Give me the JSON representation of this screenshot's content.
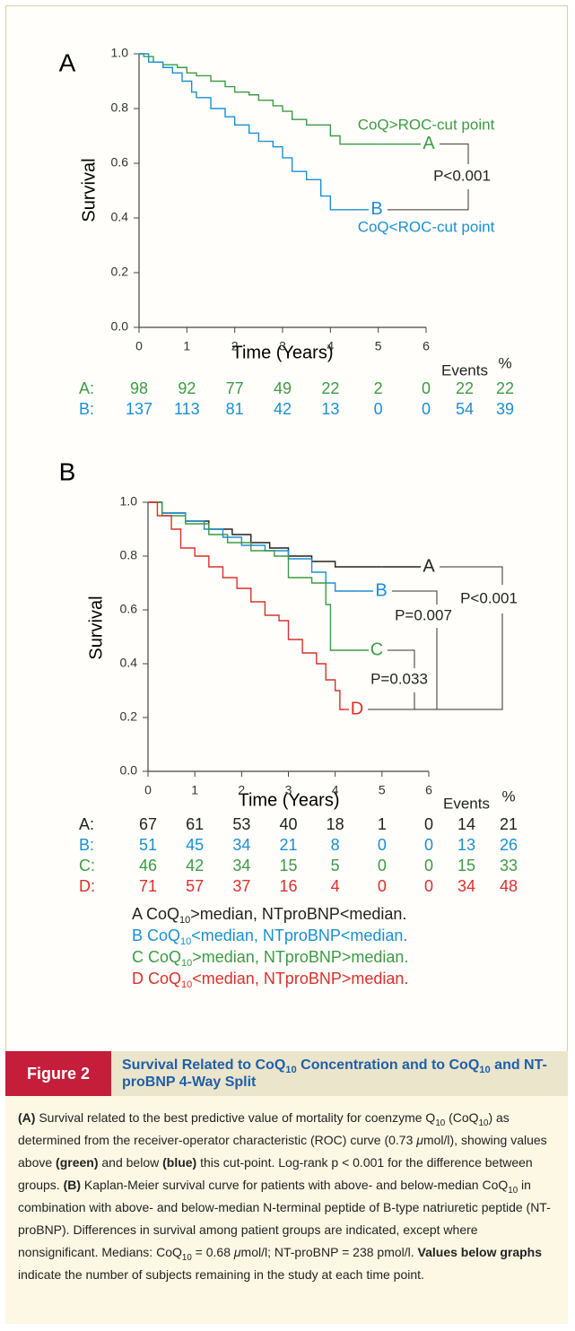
{
  "chart_data": [
    {
      "type": "step",
      "panel": "A",
      "ylabel": "Survival",
      "xlabel": "Time (Years)",
      "xlim": [
        0,
        6
      ],
      "xticks": [
        0,
        1,
        2,
        3,
        4,
        5,
        6
      ],
      "ylim": [
        0,
        1
      ],
      "yticks": [
        {
          "value": 0,
          "label": "0.0"
        },
        {
          "value": 0.2,
          "label": "0.2"
        },
        {
          "value": 0.4,
          "label": "0.4"
        },
        {
          "value": 0.6,
          "label": "0.6"
        },
        {
          "value": 0.8,
          "label": "0.8"
        },
        {
          "value": 1,
          "label": "1.0"
        }
      ],
      "series": [
        {
          "name": "A",
          "color": "#3d9a45",
          "x": [
            0,
            0.1,
            0.3,
            0.5,
            0.8,
            1.0,
            1.2,
            1.5,
            1.8,
            2.0,
            2.3,
            2.5,
            2.8,
            3.0,
            3.2,
            3.5,
            4.0,
            4.2,
            5.0
          ],
          "values": [
            1,
            0.99,
            0.97,
            0.96,
            0.95,
            0.93,
            0.92,
            0.9,
            0.88,
            0.86,
            0.85,
            0.83,
            0.81,
            0.79,
            0.76,
            0.74,
            0.7,
            0.67,
            0.67
          ]
        },
        {
          "name": "B",
          "color": "#1a8fd3",
          "x": [
            0,
            0.2,
            0.5,
            0.7,
            0.9,
            1.1,
            1.2,
            1.5,
            1.8,
            2.0,
            2.3,
            2.5,
            2.8,
            3.0,
            3.2,
            3.5,
            3.8,
            4.0,
            4.6
          ],
          "values": [
            1,
            0.97,
            0.95,
            0.93,
            0.9,
            0.86,
            0.84,
            0.8,
            0.77,
            0.74,
            0.71,
            0.68,
            0.66,
            0.62,
            0.57,
            0.54,
            0.48,
            0.43,
            0.43
          ]
        }
      ],
      "annotations": [
        {
          "text": "CoQ>ROC-cut point",
          "color": "#3d9a45"
        },
        {
          "text": "CoQ<ROC-cut point",
          "color": "#1a8fd3"
        }
      ],
      "comparisons": [
        {
          "text": "P<0.001"
        }
      ],
      "risk_table": {
        "headers": [
          "Events",
          "%"
        ],
        "rows": [
          {
            "label": "A:",
            "color": "#3d9a45",
            "values": [
              98,
              92,
              77,
              49,
              22,
              2,
              0
            ],
            "events": 22,
            "percent": 22
          },
          {
            "label": "B:",
            "color": "#1a8fd3",
            "values": [
              137,
              113,
              81,
              42,
              13,
              0,
              0
            ],
            "events": 54,
            "percent": 39
          }
        ]
      }
    },
    {
      "type": "step",
      "panel": "B",
      "ylabel": "Survival",
      "xlabel": "Time (Years)",
      "xlim": [
        0,
        6
      ],
      "xticks": [
        0,
        1,
        2,
        3,
        4,
        5,
        6
      ],
      "ylim": [
        0,
        1
      ],
      "yticks": [
        {
          "value": 0,
          "label": "0.0"
        },
        {
          "value": 0.2,
          "label": "0.2"
        },
        {
          "value": 0.4,
          "label": "0.4"
        },
        {
          "value": 0.6,
          "label": "0.6"
        },
        {
          "value": 0.8,
          "label": "0.8"
        },
        {
          "value": 1,
          "label": "1.0"
        }
      ],
      "series": [
        {
          "name": "A",
          "color": "#222222",
          "x": [
            0,
            0.3,
            0.8,
            1.3,
            1.8,
            2.2,
            2.6,
            3.0,
            3.5,
            4.0,
            5.0
          ],
          "values": [
            1,
            0.96,
            0.93,
            0.9,
            0.88,
            0.85,
            0.83,
            0.8,
            0.78,
            0.76,
            0.76
          ]
        },
        {
          "name": "B",
          "color": "#1a8fd3",
          "x": [
            0,
            0.3,
            0.8,
            1.2,
            1.6,
            2.0,
            2.5,
            3.0,
            3.5,
            3.8,
            4.0,
            4.5
          ],
          "values": [
            1,
            0.96,
            0.93,
            0.9,
            0.87,
            0.84,
            0.82,
            0.79,
            0.74,
            0.7,
            0.67,
            0.67
          ]
        },
        {
          "name": "C",
          "color": "#3d9a45",
          "x": [
            0,
            0.3,
            0.8,
            1.3,
            1.7,
            2.2,
            2.7,
            3.0,
            3.5,
            3.8,
            3.9,
            4.3
          ],
          "values": [
            1,
            0.95,
            0.92,
            0.88,
            0.85,
            0.82,
            0.8,
            0.72,
            0.7,
            0.62,
            0.45,
            0.45
          ]
        },
        {
          "name": "D",
          "color": "#d9302c",
          "x": [
            0,
            0.2,
            0.5,
            0.7,
            1.0,
            1.3,
            1.6,
            1.9,
            2.2,
            2.5,
            2.8,
            3.0,
            3.3,
            3.6,
            3.8,
            4.0,
            4.1,
            4.2
          ],
          "values": [
            1,
            0.95,
            0.9,
            0.83,
            0.8,
            0.76,
            0.72,
            0.68,
            0.63,
            0.58,
            0.56,
            0.49,
            0.44,
            0.4,
            0.34,
            0.3,
            0.23,
            0.23
          ]
        }
      ],
      "annotations": [],
      "comparisons": [
        {
          "text": "P<0.001"
        },
        {
          "text": "P=0.007"
        },
        {
          "text": "P=0.033"
        }
      ],
      "risk_table": {
        "headers": [
          "Events",
          "%"
        ],
        "rows": [
          {
            "label": "A:",
            "color": "#222222",
            "values": [
              67,
              61,
              53,
              40,
              18,
              1,
              0
            ],
            "events": 14,
            "percent": 21
          },
          {
            "label": "B:",
            "color": "#1a8fd3",
            "values": [
              51,
              45,
              34,
              21,
              8,
              0,
              0
            ],
            "events": 13,
            "percent": 26
          },
          {
            "label": "C:",
            "color": "#3d9a45",
            "values": [
              46,
              42,
              34,
              15,
              5,
              0,
              0
            ],
            "events": 15,
            "percent": 33
          },
          {
            "label": "D:",
            "color": "#d9302c",
            "values": [
              71,
              57,
              37,
              16,
              4,
              0,
              0
            ],
            "events": 34,
            "percent": 48
          }
        ]
      },
      "legend_notes": [
        {
          "color": "#222222",
          "parts": [
            {
              "text": "A CoQ"
            },
            {
              "text": "10",
              "style": "sub"
            },
            {
              "text": ">median, NTproBNP<median."
            }
          ]
        },
        {
          "color": "#1a8fd3",
          "parts": [
            {
              "text": "B CoQ"
            },
            {
              "text": "10",
              "style": "sub"
            },
            {
              "text": "<median, NTproBNP<median."
            }
          ]
        },
        {
          "color": "#3d9a45",
          "parts": [
            {
              "text": "C CoQ"
            },
            {
              "text": "10",
              "style": "sub"
            },
            {
              "text": ">median, NTproBNP>median."
            }
          ]
        },
        {
          "color": "#d9302c",
          "parts": [
            {
              "text": "D CoQ"
            },
            {
              "text": "10",
              "style": "sub"
            },
            {
              "text": "<median, NTproBNP>median."
            }
          ]
        }
      ]
    }
  ],
  "figure": {
    "label": "Figure 2",
    "title": [
      {
        "text": "Survival Related to CoQ"
      },
      {
        "text": "10",
        "style": "sub"
      },
      {
        "text": " Concentration and to CoQ"
      },
      {
        "text": "10",
        "style": "sub"
      },
      {
        "text": " and NT-proBNP 4-Way Split"
      }
    ]
  },
  "caption": [
    {
      "text": "(A)",
      "style": "b"
    },
    {
      "text": " Survival related to the best predictive value of mortality for coenzyme Q"
    },
    {
      "text": "10",
      "style": "sub"
    },
    {
      "text": " (CoQ"
    },
    {
      "text": "10",
      "style": "sub"
    },
    {
      "text": ") as determined from the receiver-operator characteristic (ROC) curve (0.73 "
    },
    {
      "text": "μ",
      "style": "i"
    },
    {
      "text": "mol/l), showing values above "
    },
    {
      "text": "(green)",
      "style": "b"
    },
    {
      "text": " and below "
    },
    {
      "text": "(blue)",
      "style": "b"
    },
    {
      "text": " this cut-point. Log-rank p < 0.001 for the difference between groups. "
    },
    {
      "text": "(B)",
      "style": "b"
    },
    {
      "text": " Kaplan-Meier survival curve for patients with above- and below-median CoQ"
    },
    {
      "text": "10",
      "style": "sub"
    },
    {
      "text": " in combination with above- and below-median N-terminal peptide of B-type natriuretic peptide (NT-proBNP). Differences in survival among patient groups are indicated, except where nonsignificant. Medians: CoQ"
    },
    {
      "text": "10",
      "style": "sub"
    },
    {
      "text": " = 0.68 "
    },
    {
      "text": "μ",
      "style": "i"
    },
    {
      "text": "mol/l; NT-proBNP = 238 pmol/l. "
    },
    {
      "text": "Values below graphs",
      "style": "b"
    },
    {
      "text": " indicate the number of subjects remaining in the study at each time point."
    }
  ]
}
